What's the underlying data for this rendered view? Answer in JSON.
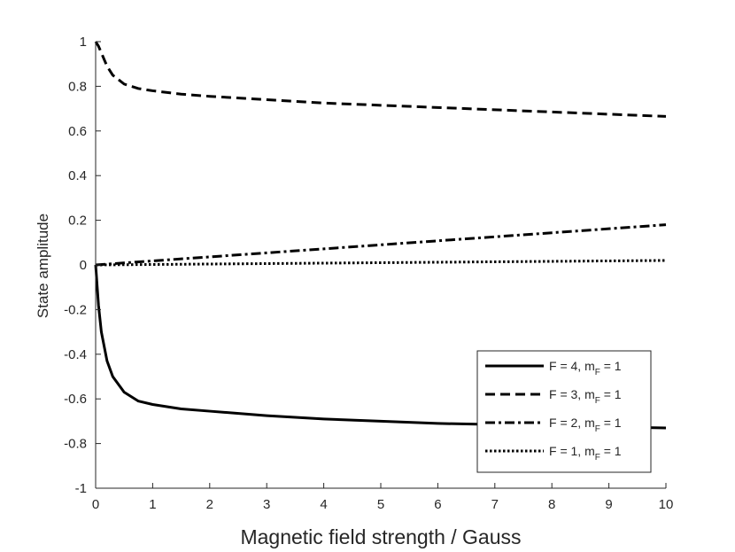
{
  "chart_data": {
    "type": "line",
    "title": "",
    "xlabel": "Magnetic field strength / Gauss",
    "ylabel": "State amplitude",
    "xlim": [
      0,
      10
    ],
    "ylim": [
      -1,
      1
    ],
    "xticks": [
      "0",
      "1",
      "2",
      "3",
      "4",
      "5",
      "6",
      "7",
      "8",
      "9",
      "10"
    ],
    "yticks": [
      "-1",
      "-0.8",
      "-0.6",
      "-0.4",
      "-0.2",
      "0",
      "0.2",
      "0.4",
      "0.6",
      "0.8",
      "1"
    ],
    "grid": false,
    "legend_position": "bottom-right",
    "series": [
      {
        "name": "F = 4, m_F = 1",
        "label_main": "F = 4, m",
        "label_sub": "F",
        "label_tail": " = 1",
        "style": "solid",
        "x": [
          0,
          0.05,
          0.1,
          0.2,
          0.3,
          0.5,
          0.75,
          1,
          1.5,
          2,
          3,
          4,
          5,
          6,
          7,
          8,
          9,
          10
        ],
        "y": [
          0,
          -0.18,
          -0.3,
          -0.43,
          -0.5,
          -0.57,
          -0.61,
          -0.625,
          -0.645,
          -0.655,
          -0.675,
          -0.69,
          -0.7,
          -0.71,
          -0.715,
          -0.72,
          -0.725,
          -0.73
        ]
      },
      {
        "name": "F = 3, m_F = 1",
        "label_main": "F = 3, m",
        "label_sub": "F",
        "label_tail": " = 1",
        "style": "dashed",
        "x": [
          0,
          0.05,
          0.1,
          0.2,
          0.3,
          0.5,
          0.75,
          1,
          1.5,
          2,
          3,
          4,
          5,
          6,
          7,
          8,
          9,
          10
        ],
        "y": [
          1.0,
          0.98,
          0.95,
          0.89,
          0.85,
          0.81,
          0.79,
          0.78,
          0.765,
          0.755,
          0.74,
          0.725,
          0.715,
          0.705,
          0.695,
          0.685,
          0.675,
          0.665
        ]
      },
      {
        "name": "F = 2, m_F = 1",
        "label_main": "F = 2, m",
        "label_sub": "F",
        "label_tail": " = 1",
        "style": "dashdot",
        "x": [
          0,
          1,
          2,
          3,
          4,
          5,
          6,
          7,
          8,
          9,
          10
        ],
        "y": [
          0,
          0.018,
          0.036,
          0.054,
          0.072,
          0.09,
          0.108,
          0.126,
          0.144,
          0.162,
          0.18
        ]
      },
      {
        "name": "F = 1, m_F = 1",
        "label_main": "F = 1, m",
        "label_sub": "F",
        "label_tail": " = 1",
        "style": "dotted",
        "x": [
          0,
          1,
          2,
          3,
          4,
          5,
          6,
          7,
          8,
          9,
          10
        ],
        "y": [
          0,
          0.002,
          0.004,
          0.006,
          0.008,
          0.01,
          0.012,
          0.014,
          0.016,
          0.018,
          0.02
        ]
      }
    ]
  }
}
